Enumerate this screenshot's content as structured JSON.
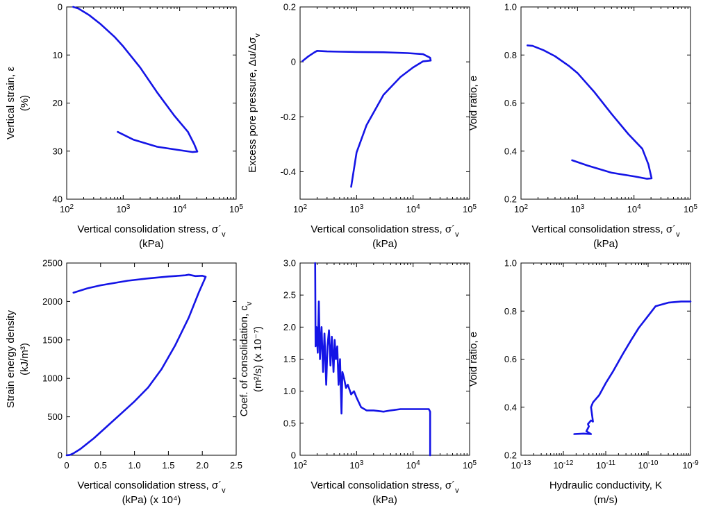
{
  "chart_data": [
    {
      "type": "line",
      "xscale": "log",
      "xlim": [
        100,
        100000
      ],
      "yreverse": true,
      "ylim": [
        40,
        0
      ],
      "xticks": [
        {
          "v": 100,
          "b": "10",
          "e": "2"
        },
        {
          "v": 1000,
          "b": "10",
          "e": "3"
        },
        {
          "v": 10000,
          "b": "10",
          "e": "4"
        },
        {
          "v": 100000,
          "b": "10",
          "e": "5"
        }
      ],
      "yticks": [
        {
          "v": 0,
          "t": "0"
        },
        {
          "v": 10,
          "t": "10"
        },
        {
          "v": 20,
          "t": "20"
        },
        {
          "v": 30,
          "t": "30"
        },
        {
          "v": 40,
          "t": "40"
        }
      ],
      "xlabel": [
        "Vertical consolidation stress, σ´v",
        "(kPa)"
      ],
      "ylabel": [
        "Vertical strain, ε",
        "(%)"
      ],
      "series": [
        {
          "points": [
            [
              130,
              0
            ],
            [
              160,
              0.3
            ],
            [
              250,
              1.7
            ],
            [
              400,
              3.6
            ],
            [
              700,
              6.2
            ],
            [
              1000,
              8.2
            ],
            [
              2000,
              12.6
            ],
            [
              4000,
              17.8
            ],
            [
              8000,
              22.6
            ],
            [
              14000,
              26
            ],
            [
              18000,
              28.5
            ],
            [
              20500,
              30.1
            ],
            [
              17000,
              30.2
            ],
            [
              10000,
              29.8
            ],
            [
              4000,
              29.1
            ],
            [
              1500,
              27.6
            ],
            [
              800,
              26
            ]
          ]
        }
      ]
    },
    {
      "type": "line",
      "xscale": "log",
      "xlim": [
        100,
        100000
      ],
      "ylim": [
        -0.5,
        0.2
      ],
      "xticks": [
        {
          "v": 100,
          "b": "10",
          "e": "2"
        },
        {
          "v": 1000,
          "b": "10",
          "e": "3"
        },
        {
          "v": 10000,
          "b": "10",
          "e": "4"
        },
        {
          "v": 100000,
          "b": "10",
          "e": "5"
        }
      ],
      "yticks": [
        {
          "v": 0.2,
          "t": "0.2"
        },
        {
          "v": 0,
          "t": "0"
        },
        {
          "v": -0.2,
          "t": "-0.2"
        },
        {
          "v": -0.4,
          "t": "-0.4"
        }
      ],
      "xlabel": [
        "Vertical consolidation stress, σ´v",
        "(kPa)"
      ],
      "ylabel": [
        "Excess pore pressure, Δu/Δσv"
      ],
      "series": [
        {
          "points": [
            [
              110,
              0.003
            ],
            [
              140,
              0.02
            ],
            [
              180,
              0.035
            ],
            [
              200,
              0.04
            ],
            [
              300,
              0.038
            ],
            [
              500,
              0.037
            ],
            [
              1000,
              0.036
            ],
            [
              3000,
              0.035
            ],
            [
              8000,
              0.032
            ],
            [
              15000,
              0.028
            ],
            [
              20000,
              0.015
            ],
            [
              20500,
              0.005
            ],
            [
              15000,
              0.002
            ],
            [
              10000,
              -0.02
            ],
            [
              6000,
              -0.055
            ],
            [
              3000,
              -0.12
            ],
            [
              1500,
              -0.23
            ],
            [
              1000,
              -0.33
            ],
            [
              800,
              -0.455
            ]
          ]
        }
      ]
    },
    {
      "type": "line",
      "xscale": "log",
      "xlim": [
        100,
        100000
      ],
      "ylim": [
        0.2,
        1.0
      ],
      "xticks": [
        {
          "v": 100,
          "b": "10",
          "e": "2"
        },
        {
          "v": 1000,
          "b": "10",
          "e": "3"
        },
        {
          "v": 10000,
          "b": "10",
          "e": "4"
        },
        {
          "v": 100000,
          "b": "10",
          "e": "5"
        }
      ],
      "yticks": [
        {
          "v": 0.2,
          "t": "0.2"
        },
        {
          "v": 0.4,
          "t": "0.4"
        },
        {
          "v": 0.6,
          "t": "0.6"
        },
        {
          "v": 0.8,
          "t": "0.8"
        },
        {
          "v": 1.0,
          "t": "1.0"
        }
      ],
      "xlabel": [
        "Vertical consolidation stress, σ´v",
        "(kPa)"
      ],
      "ylabel": [
        "Void ratio, e"
      ],
      "series": [
        {
          "points": [
            [
              130,
              0.84
            ],
            [
              160,
              0.838
            ],
            [
              250,
              0.82
            ],
            [
              400,
              0.795
            ],
            [
              700,
              0.755
            ],
            [
              1000,
              0.725
            ],
            [
              2000,
              0.645
            ],
            [
              4000,
              0.555
            ],
            [
              8000,
              0.47
            ],
            [
              14000,
              0.41
            ],
            [
              18000,
              0.345
            ],
            [
              20500,
              0.287
            ],
            [
              17000,
              0.285
            ],
            [
              10000,
              0.295
            ],
            [
              4000,
              0.31
            ],
            [
              1500,
              0.34
            ],
            [
              800,
              0.362
            ]
          ]
        }
      ]
    },
    {
      "type": "line",
      "xscale": "linear",
      "xlim": [
        0,
        2.5
      ],
      "ylim": [
        0,
        2500
      ],
      "xticks": [
        {
          "v": 0,
          "t": "0"
        },
        {
          "v": 0.5,
          "t": "0.5"
        },
        {
          "v": 1.0,
          "t": "1.0"
        },
        {
          "v": 1.5,
          "t": "1.5"
        },
        {
          "v": 2.0,
          "t": "2.0"
        },
        {
          "v": 2.5,
          "t": "2.5"
        }
      ],
      "yticks": [
        {
          "v": 0,
          "t": "0"
        },
        {
          "v": 500,
          "t": "500"
        },
        {
          "v": 1000,
          "t": "1000"
        },
        {
          "v": 1500,
          "t": "1500"
        },
        {
          "v": 2000,
          "t": "2000"
        },
        {
          "v": 2500,
          "t": "2500"
        }
      ],
      "xlabel": [
        "Vertical consolidation stress, σ´v",
        "(kPa) (x 10⁴)"
      ],
      "ylabel": [
        "Strain energy density",
        "(kJ/m³)"
      ],
      "series": [
        {
          "points": [
            [
              0,
              0
            ],
            [
              0.05,
              5
            ],
            [
              0.1,
              25
            ],
            [
              0.2,
              80
            ],
            [
              0.4,
              220
            ],
            [
              0.6,
              380
            ],
            [
              0.8,
              540
            ],
            [
              1.0,
              700
            ],
            [
              1.2,
              880
            ],
            [
              1.4,
              1120
            ],
            [
              1.6,
              1430
            ],
            [
              1.8,
              1790
            ],
            [
              1.95,
              2120
            ],
            [
              2.05,
              2320
            ],
            [
              2.0,
              2335
            ],
            [
              1.9,
              2330
            ],
            [
              1.8,
              2348
            ],
            [
              1.75,
              2340
            ],
            [
              1.5,
              2325
            ],
            [
              1.2,
              2300
            ],
            [
              0.9,
              2270
            ],
            [
              0.5,
              2210
            ],
            [
              0.3,
              2170
            ],
            [
              0.1,
              2115
            ]
          ]
        }
      ]
    },
    {
      "type": "line",
      "xscale": "log",
      "xlim": [
        100,
        100000
      ],
      "ylim": [
        0,
        3.0
      ],
      "xticks": [
        {
          "v": 100,
          "b": "10",
          "e": "2"
        },
        {
          "v": 1000,
          "b": "10",
          "e": "3"
        },
        {
          "v": 10000,
          "b": "10",
          "e": "4"
        },
        {
          "v": 100000,
          "b": "10",
          "e": "5"
        }
      ],
      "yticks": [
        {
          "v": 0,
          "t": "0"
        },
        {
          "v": 0.5,
          "t": "0.5"
        },
        {
          "v": 1.0,
          "t": "1.0"
        },
        {
          "v": 1.5,
          "t": "1.5"
        },
        {
          "v": 2.0,
          "t": "2.0"
        },
        {
          "v": 2.5,
          "t": "2.5"
        },
        {
          "v": 3.0,
          "t": "3.0"
        }
      ],
      "xlabel": [
        "Vertical consolidation stress, σ´v",
        "(kPa)"
      ],
      "ylabel": [
        "Coef. of consolidation, cv",
        "(m²/s) (x 10⁻⁷)"
      ],
      "series": [
        {
          "points": [
            [
              185,
              3.0
            ],
            [
              188,
              1.7
            ],
            [
              195,
              2.0
            ],
            [
              205,
              1.6
            ],
            [
              215,
              2.4
            ],
            [
              225,
              1.5
            ],
            [
              240,
              2.0
            ],
            [
              255,
              1.3
            ],
            [
              270,
              1.9
            ],
            [
              290,
              1.1
            ],
            [
              305,
              1.7
            ],
            [
              325,
              1.95
            ],
            [
              345,
              1.4
            ],
            [
              365,
              1.85
            ],
            [
              390,
              1.3
            ],
            [
              410,
              1.8
            ],
            [
              430,
              1.5
            ],
            [
              455,
              1.7
            ],
            [
              480,
              1.1
            ],
            [
              510,
              1.5
            ],
            [
              540,
              0.65
            ],
            [
              560,
              1.3
            ],
            [
              600,
              1.2
            ],
            [
              650,
              1.05
            ],
            [
              700,
              1.1
            ],
            [
              800,
              0.95
            ],
            [
              900,
              1.0
            ],
            [
              1000,
              0.9
            ],
            [
              1200,
              0.75
            ],
            [
              1500,
              0.7
            ],
            [
              2000,
              0.7
            ],
            [
              3000,
              0.68
            ],
            [
              4000,
              0.7
            ],
            [
              6000,
              0.72
            ],
            [
              8000,
              0.72
            ],
            [
              12000,
              0.72
            ],
            [
              15000,
              0.72
            ],
            [
              19000,
              0.72
            ],
            [
              20000,
              0.68
            ],
            [
              20000,
              0
            ]
          ]
        }
      ]
    },
    {
      "type": "line",
      "xscale": "log",
      "xlim": [
        1e-13,
        1e-09
      ],
      "ylim": [
        0.2,
        1.0
      ],
      "xticks": [
        {
          "v": 1e-13,
          "b": "10",
          "e": "-13"
        },
        {
          "v": 1e-12,
          "b": "10",
          "e": "-12"
        },
        {
          "v": 1e-11,
          "b": "10",
          "e": "-11"
        },
        {
          "v": 1e-10,
          "b": "10",
          "e": "-10"
        },
        {
          "v": 1e-09,
          "b": "10",
          "e": "-9"
        }
      ],
      "yticks": [
        {
          "v": 0.2,
          "t": "0.2"
        },
        {
          "v": 0.4,
          "t": "0.4"
        },
        {
          "v": 0.6,
          "t": "0.6"
        },
        {
          "v": 0.8,
          "t": "0.8"
        },
        {
          "v": 1.0,
          "t": "1.0"
        }
      ],
      "xlabel": [
        "Hydraulic conductivity, K",
        "(m/s)"
      ],
      "ylabel": [
        "Void ratio, e"
      ],
      "series": [
        {
          "points": [
            [
              1.8e-12,
              0.288
            ],
            [
              3e-12,
              0.29
            ],
            [
              4.5e-12,
              0.288
            ],
            [
              3.5e-12,
              0.3
            ],
            [
              4e-12,
              0.32
            ],
            [
              3.8e-12,
              0.33
            ],
            [
              4.5e-12,
              0.345
            ],
            [
              5e-12,
              0.34
            ],
            [
              4.5e-12,
              0.4
            ],
            [
              5e-12,
              0.42
            ],
            [
              7e-12,
              0.45
            ],
            [
              1e-11,
              0.5
            ],
            [
              1.5e-11,
              0.55
            ],
            [
              2.5e-11,
              0.62
            ],
            [
              4e-11,
              0.68
            ],
            [
              6e-11,
              0.73
            ],
            [
              1e-10,
              0.78
            ],
            [
              1.5e-10,
              0.82
            ],
            [
              3e-10,
              0.835
            ],
            [
              6e-10,
              0.84
            ],
            [
              1e-09,
              0.84
            ]
          ]
        }
      ]
    }
  ]
}
